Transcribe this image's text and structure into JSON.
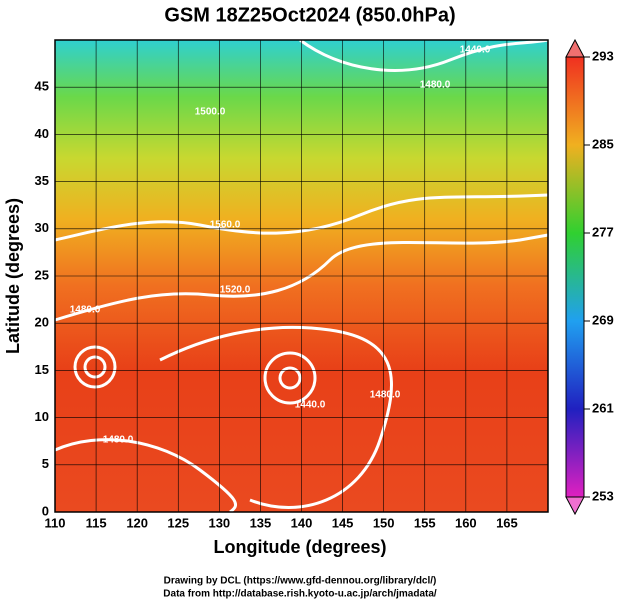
{
  "title": "GSM 18Z25Oct2024 (850.0hPa)",
  "x_axis": {
    "label": "Longitude (degrees)",
    "lim": [
      110,
      170
    ],
    "ticks": [
      110,
      115,
      120,
      125,
      130,
      135,
      140,
      145,
      150,
      155,
      160,
      165
    ]
  },
  "y_axis": {
    "label": "Latitude  (degrees)",
    "lim": [
      0,
      50
    ],
    "ticks": [
      0,
      5,
      10,
      15,
      20,
      25,
      30,
      35,
      40,
      45
    ]
  },
  "colorbar": {
    "lim": [
      253,
      293
    ],
    "ticks": [
      253,
      261,
      269,
      277,
      285,
      293
    ]
  },
  "contour_labels": [
    "1520.0",
    "1480.0",
    "1440.0",
    "1560.0",
    "1500.0",
    "1440.0",
    "1480.0",
    "1480.0",
    "1480.0"
  ],
  "credits": [
    "Drawing by DCL (https://www.gfd-dennou.org/library/dcl/)",
    "Data from http://database.rish.kyoto-u.ac.jp/arch/jmadata/"
  ]
}
